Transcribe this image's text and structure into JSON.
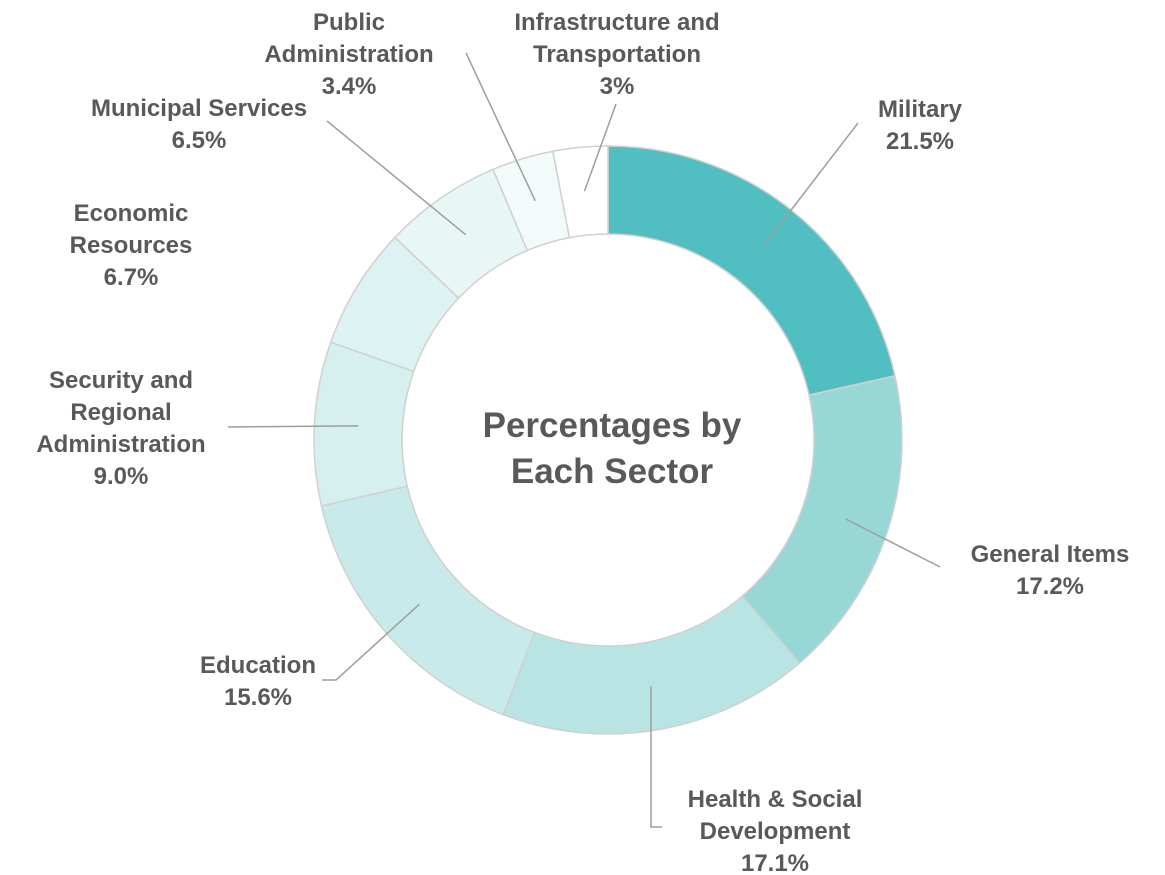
{
  "chart_data": {
    "type": "pie",
    "title_lines": [
      "Percentages by",
      "Each Sector"
    ],
    "label_color": "#595959",
    "leader_color": "#9e9e9e",
    "slice_border_color": "#d0d0d0",
    "categories": [
      "Military",
      "General Items",
      "Health & Social Development",
      "Education",
      "Security and Regional Administration",
      "Economic Resources",
      "Municipal Services",
      "Public Administration",
      "Infrastructure and Transportation"
    ],
    "values": [
      21.5,
      17.2,
      17.1,
      15.6,
      9.0,
      6.7,
      6.5,
      3.4,
      3.0
    ],
    "slices": [
      {
        "category": "Military",
        "value": 21.5,
        "label_lines": [
          "Military",
          "21.5%"
        ],
        "color": "#51bfc1"
      },
      {
        "category": "General Items",
        "value": 17.2,
        "label_lines": [
          "General Items",
          "17.2%"
        ],
        "color": "#97d8d7"
      },
      {
        "category": "Health & Social Development",
        "value": 17.1,
        "label_lines": [
          "Health & Social",
          "Development",
          "17.1%"
        ],
        "color": "#b9e4e4"
      },
      {
        "category": "Education",
        "value": 15.6,
        "label_lines": [
          "Education",
          "15.6%"
        ],
        "color": "#c8eaea"
      },
      {
        "category": "Security and Regional Administration",
        "value": 9.0,
        "label_lines": [
          "Security and",
          "Regional",
          "Administration",
          "9.0%"
        ],
        "color": "#d6efef"
      },
      {
        "category": "Economic Resources",
        "value": 6.7,
        "label_lines": [
          "Economic",
          "Resources",
          "6.7%"
        ],
        "color": "#ddf2f2"
      },
      {
        "category": "Municipal Services",
        "value": 6.5,
        "label_lines": [
          "Municipal Services",
          "6.5%"
        ],
        "color": "#e8f6f6"
      },
      {
        "category": "Public Administration",
        "value": 3.4,
        "label_lines": [
          "Public",
          "Administration",
          "3.4%"
        ],
        "color": "#f2fafa"
      },
      {
        "category": "Infrastructure and Transportation",
        "value": 3.0,
        "label_lines": [
          "Infrastructure and",
          "Transportation",
          "3%"
        ],
        "color": "#ffffff"
      }
    ]
  }
}
